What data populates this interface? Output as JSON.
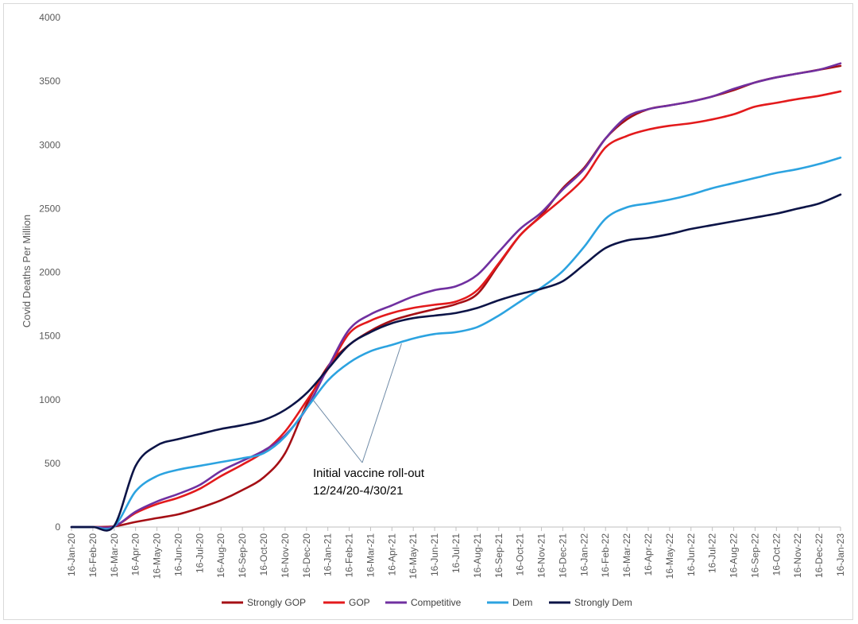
{
  "chart_data": {
    "type": "line",
    "title": "",
    "xlabel": "",
    "ylabel": "Covid Deaths Per Million",
    "ylim": [
      0,
      4000
    ],
    "yticks": [
      0,
      500,
      1000,
      1500,
      2000,
      2500,
      3000,
      3500,
      4000
    ],
    "xticks": [
      "16-Jan-20",
      "16-Feb-20",
      "16-Mar-20",
      "16-Apr-20",
      "16-May-20",
      "16-Jun-20",
      "16-Jul-20",
      "16-Aug-20",
      "16-Sep-20",
      "16-Oct-20",
      "16-Nov-20",
      "16-Dec-20",
      "16-Jan-21",
      "16-Feb-21",
      "16-Mar-21",
      "16-Apr-21",
      "16-May-21",
      "16-Jun-21",
      "16-Jul-21",
      "16-Aug-21",
      "16-Sep-21",
      "16-Oct-21",
      "16-Nov-21",
      "16-Dec-21",
      "16-Jan-22",
      "16-Feb-22",
      "16-Mar-22",
      "16-Apr-22",
      "16-May-22",
      "16-Jun-22",
      "16-Jul-22",
      "16-Aug-22",
      "16-Sep-22",
      "16-Oct-22",
      "16-Nov-22",
      "16-Dec-22",
      "16-Jan-23"
    ],
    "grid": false,
    "legend": "bottom",
    "series": [
      {
        "name": "Strongly GOP",
        "color": "#a50f15",
        "values": [
          0,
          0,
          5,
          40,
          70,
          100,
          150,
          210,
          290,
          390,
          580,
          960,
          1260,
          1430,
          1540,
          1620,
          1670,
          1710,
          1750,
          1830,
          2060,
          2290,
          2450,
          2660,
          2820,
          3050,
          3200,
          3280,
          3310,
          3340,
          3380,
          3430,
          3490,
          3530,
          3560,
          3590,
          3620
        ]
      },
      {
        "name": "GOP",
        "color": "#e31a1c",
        "values": [
          0,
          0,
          5,
          110,
          180,
          230,
          300,
          400,
          490,
          590,
          750,
          990,
          1240,
          1520,
          1620,
          1680,
          1720,
          1745,
          1770,
          1860,
          2070,
          2290,
          2440,
          2580,
          2740,
          2980,
          3070,
          3120,
          3150,
          3170,
          3200,
          3240,
          3300,
          3330,
          3360,
          3385,
          3420
        ]
      },
      {
        "name": "Competitive",
        "color": "#7030a0",
        "values": [
          0,
          0,
          5,
          120,
          200,
          260,
          330,
          440,
          520,
          600,
          720,
          930,
          1250,
          1550,
          1670,
          1740,
          1810,
          1860,
          1890,
          1980,
          2160,
          2340,
          2470,
          2650,
          2810,
          3050,
          3220,
          3280,
          3310,
          3340,
          3380,
          3440,
          3490,
          3530,
          3560,
          3590,
          3640
        ]
      },
      {
        "name": "Dem",
        "color": "#2ca3e0",
        "values": [
          0,
          0,
          5,
          280,
          400,
          450,
          480,
          510,
          540,
          580,
          710,
          930,
          1150,
          1290,
          1380,
          1430,
          1480,
          1515,
          1530,
          1570,
          1660,
          1770,
          1880,
          2010,
          2200,
          2420,
          2510,
          2540,
          2570,
          2610,
          2660,
          2700,
          2740,
          2780,
          2810,
          2850,
          2900
        ]
      },
      {
        "name": "Strongly Dem",
        "color": "#0c1447",
        "values": [
          0,
          0,
          10,
          480,
          640,
          690,
          730,
          770,
          800,
          840,
          920,
          1050,
          1240,
          1430,
          1530,
          1600,
          1640,
          1660,
          1680,
          1720,
          1780,
          1830,
          1870,
          1930,
          2060,
          2190,
          2250,
          2270,
          2300,
          2340,
          2370,
          2400,
          2430,
          2460,
          2500,
          2540,
          2610
        ]
      }
    ],
    "annotation": {
      "lines": [
        "Initial vaccine roll-out",
        "12/24/20-4/30/21"
      ],
      "targets": [
        {
          "x_index": 11.25,
          "value": 1010
        },
        {
          "x_index": 15.45,
          "value": 1440
        }
      ]
    }
  }
}
